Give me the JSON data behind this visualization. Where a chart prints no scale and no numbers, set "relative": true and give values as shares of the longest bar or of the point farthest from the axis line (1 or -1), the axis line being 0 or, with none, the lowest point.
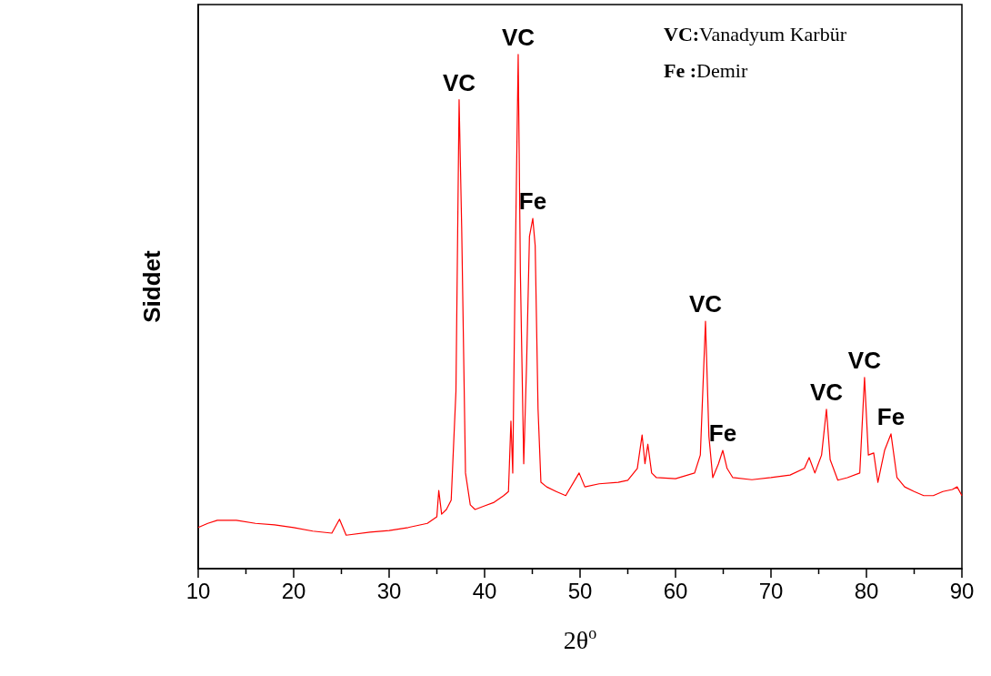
{
  "chart_data": {
    "type": "line",
    "relative": true,
    "xlabel": "2θ$^{o}$",
    "ylabel": "Siddet",
    "xlim": [
      10,
      90
    ],
    "xticks": [
      10,
      20,
      30,
      40,
      50,
      60,
      70,
      80,
      90
    ],
    "grid": false,
    "marker": "none",
    "line_style": "solid",
    "series": [
      {
        "color": "#ff0000",
        "x": [
          10,
          11,
          12,
          14,
          16,
          18,
          20,
          22,
          24,
          24.8,
          25.5,
          28,
          30,
          32,
          34,
          35,
          35.2,
          35.5,
          36,
          36.5,
          37,
          37.33,
          37.6,
          38,
          38.5,
          39,
          40,
          41,
          42,
          42.5,
          42.76,
          42.95,
          43.2,
          43.52,
          43.75,
          44.1,
          44.4,
          44.7,
          45.05,
          45.3,
          45.6,
          45.9,
          46.5,
          47.5,
          48.5,
          49.9,
          50.5,
          52,
          54,
          55,
          56,
          56.5,
          56.8,
          57.1,
          57.5,
          58,
          60,
          62,
          62.6,
          63.14,
          63.5,
          63.9,
          64.5,
          64.95,
          65.4,
          66,
          68,
          70,
          72,
          73.5,
          74,
          74.6,
          75.3,
          75.81,
          76.2,
          77,
          78,
          79.3,
          79.8,
          80.2,
          80.76,
          81.2,
          81.9,
          82.57,
          83.2,
          84,
          85,
          86,
          87,
          88,
          89,
          89.5,
          90
        ],
        "values": [
          0.08,
          0.088,
          0.094,
          0.094,
          0.088,
          0.085,
          0.08,
          0.073,
          0.069,
          0.096,
          0.065,
          0.071,
          0.074,
          0.08,
          0.088,
          0.101,
          0.152,
          0.106,
          0.115,
          0.133,
          0.345,
          0.912,
          0.664,
          0.186,
          0.124,
          0.115,
          0.122,
          0.129,
          0.142,
          0.15,
          0.287,
          0.186,
          0.575,
          1.0,
          0.575,
          0.204,
          0.398,
          0.646,
          0.681,
          0.628,
          0.31,
          0.168,
          0.159,
          0.15,
          0.142,
          0.186,
          0.159,
          0.165,
          0.168,
          0.172,
          0.195,
          0.26,
          0.204,
          0.242,
          0.186,
          0.177,
          0.175,
          0.186,
          0.221,
          0.481,
          0.257,
          0.177,
          0.204,
          0.23,
          0.195,
          0.177,
          0.173,
          0.177,
          0.182,
          0.195,
          0.216,
          0.186,
          0.221,
          0.31,
          0.212,
          0.172,
          0.177,
          0.186,
          0.372,
          0.221,
          0.225,
          0.168,
          0.23,
          0.262,
          0.177,
          0.159,
          0.15,
          0.142,
          0.142,
          0.15,
          0.154,
          0.159,
          0.142
        ]
      }
    ],
    "annotations": [
      {
        "text": "VC",
        "x": 37.33,
        "y": 0.912
      },
      {
        "text": "VC",
        "x": 43.52,
        "y": 1.0
      },
      {
        "text": "Fe",
        "x": 45.05,
        "y": 0.681
      },
      {
        "text": "VC",
        "x": 63.14,
        "y": 0.481
      },
      {
        "text": "Fe",
        "x": 64.95,
        "y": 0.23
      },
      {
        "text": "VC",
        "x": 75.81,
        "y": 0.31
      },
      {
        "text": "VC",
        "x": 79.8,
        "y": 0.372
      },
      {
        "text": "Fe",
        "x": 82.57,
        "y": 0.262
      },
      "VC:Vanadyum Karbür",
      "Fe :Demir"
    ]
  }
}
